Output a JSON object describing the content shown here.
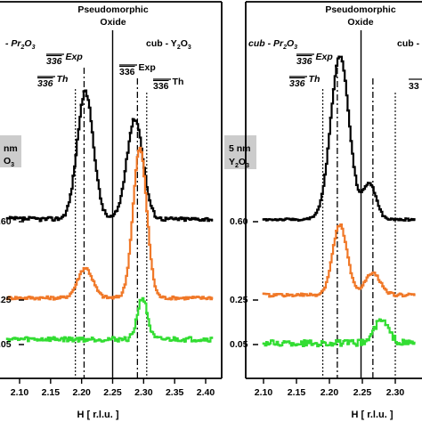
{
  "chart_data": [
    {
      "type": "line",
      "panel": "left",
      "xlabel": "H [ r.l.u. ]",
      "xlim": [
        2.08,
        2.41
      ],
      "xticks": [
        "2.10",
        "2.15",
        "2.20",
        "2.25",
        "2.30",
        "2.35",
        "2.40"
      ],
      "sample_label": [
        "nm",
        "O",
        "3"
      ],
      "annotations": {
        "title": [
          "Pseudomorphic",
          "Oxide"
        ],
        "phase_left": [
          "- Pr",
          "2",
          "O",
          "3"
        ],
        "phase_right": [
          "cub - Y",
          "2",
          "O",
          "3"
        ],
        "exp_left": [
          "336",
          "Exp"
        ],
        "th_left": [
          "336",
          "Th"
        ],
        "exp_right": [
          "336",
          "Exp"
        ],
        "th_right": [
          "336",
          "Th"
        ]
      },
      "reference_lines": {
        "pr_th": 2.19,
        "pr_exp": 2.204,
        "pseudo": 2.25,
        "y_exp": 2.29,
        "y_th": 2.305
      },
      "series": [
        {
          "name": ".60",
          "color": "#000000",
          "peaks": [
            [
              2.205,
              0.95,
              0.013
            ],
            [
              2.285,
              0.75,
              0.013
            ]
          ],
          "baseline": 0.02
        },
        {
          "name": ".25",
          "color": "#f07828",
          "peaks": [
            [
              2.205,
              0.28,
              0.012
            ],
            [
              2.293,
              1.4,
              0.011
            ]
          ],
          "baseline": 0.02
        },
        {
          "name": ".05",
          "color": "#33dd33",
          "peaks": [
            [
              2.297,
              0.78,
              0.008
            ]
          ],
          "baseline": 0.1
        }
      ]
    },
    {
      "type": "line",
      "panel": "right",
      "xlabel": "H [ r.l.u. ]",
      "xlim": [
        2.1,
        2.33
      ],
      "xticks": [
        "2.10",
        "2.15",
        "2.20",
        "2.25",
        "2.30"
      ],
      "sample_label": [
        "5 nm",
        "Y",
        "2",
        "O",
        "3"
      ],
      "annotations": {
        "title": [
          "Pseudomorphic",
          "Oxide"
        ],
        "phase_left": [
          "cub - Pr",
          "2",
          "O",
          "3"
        ],
        "phase_right": [
          "cub - Y"
        ],
        "exp_left": [
          "336",
          "Exp"
        ],
        "th_left": [
          "336",
          "Th"
        ],
        "th_right": [
          "33"
        ]
      },
      "reference_lines": {
        "pr_th": 2.19,
        "pr_exp": 2.212,
        "pseudo": 2.248,
        "y_exp": 2.266,
        "y_th": 2.3
      },
      "series": [
        {
          "name": "0.60",
          "color": "#000000",
          "peaks": [
            [
              2.215,
              2.3,
              0.014
            ],
            [
              2.26,
              0.5,
              0.01
            ]
          ],
          "baseline": 0.03
        },
        {
          "name": "0.25",
          "color": "#f07828",
          "peaks": [
            [
              2.215,
              0.72,
              0.011
            ],
            [
              2.265,
              0.22,
              0.012
            ]
          ],
          "baseline": 0.05
        },
        {
          "name": "0.05",
          "color": "#33dd33",
          "peaks": [
            [
              2.278,
              0.32,
              0.011
            ]
          ],
          "baseline": 0.02
        }
      ]
    }
  ]
}
